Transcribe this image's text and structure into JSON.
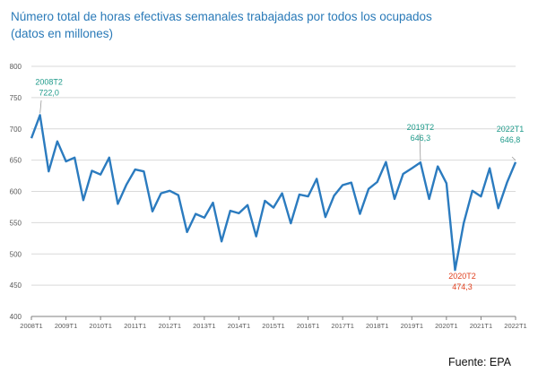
{
  "title_line1": "Número total de horas efectivas semanales trabajadas por todos los ocupados",
  "title_line2": "(datos en millones)",
  "source": "Fuente: EPA",
  "colors": {
    "line": "#2b7bbf",
    "title": "#2a7ab8",
    "annotation_high": "#1e9a8a",
    "annotation_low": "#e0401f",
    "grid": "#d9d9d9",
    "axis_text": "#595959"
  },
  "chart_data": {
    "type": "line",
    "title": "Número total de horas efectivas semanales trabajadas por todos los ocupados (datos en millones)",
    "grid": "horizontal",
    "ylim": [
      400,
      800
    ],
    "yticks": [
      400,
      450,
      500,
      550,
      600,
      650,
      700,
      750,
      800
    ],
    "xtick_labels": [
      "2008T1",
      "2009T1",
      "2010T1",
      "2011T1",
      "2012T1",
      "2013T1",
      "2014T1",
      "2015T1",
      "2016T1",
      "2017T1",
      "2018T1",
      "2019T1",
      "2020T1",
      "2021T1",
      "2022T1"
    ],
    "x": [
      "2008T1",
      "2008T2",
      "2008T3",
      "2008T4",
      "2009T1",
      "2009T2",
      "2009T3",
      "2009T4",
      "2010T1",
      "2010T2",
      "2010T3",
      "2010T4",
      "2011T1",
      "2011T2",
      "2011T3",
      "2011T4",
      "2012T1",
      "2012T2",
      "2012T3",
      "2012T4",
      "2013T1",
      "2013T2",
      "2013T3",
      "2013T4",
      "2014T1",
      "2014T2",
      "2014T3",
      "2014T4",
      "2015T1",
      "2015T2",
      "2015T3",
      "2015T4",
      "2016T1",
      "2016T2",
      "2016T3",
      "2016T4",
      "2017T1",
      "2017T2",
      "2017T3",
      "2017T4",
      "2018T1",
      "2018T2",
      "2018T3",
      "2018T4",
      "2019T1",
      "2019T2",
      "2019T3",
      "2019T4",
      "2020T1",
      "2020T2",
      "2020T3",
      "2020T4",
      "2021T1",
      "2021T2",
      "2021T3",
      "2021T4",
      "2022T1"
    ],
    "values": [
      685,
      722.0,
      632,
      680,
      648,
      654,
      586,
      633,
      627,
      654,
      580,
      611,
      635,
      632,
      568,
      597,
      601,
      594,
      535,
      564,
      558,
      582,
      520,
      569,
      565,
      578,
      528,
      585,
      574,
      597,
      549,
      595,
      592,
      620,
      559,
      593,
      610,
      614,
      564,
      604,
      615,
      647,
      588,
      628,
      637,
      646.3,
      588,
      640,
      613,
      474.3,
      549,
      601,
      592,
      637,
      573,
      614,
      646.8
    ],
    "annotations": [
      {
        "x": "2008T2",
        "label": "2008T2",
        "value": "722,0",
        "color": "high"
      },
      {
        "x": "2019T2",
        "label": "2019T2",
        "value": "646,3",
        "color": "high"
      },
      {
        "x": "2020T2",
        "label": "2020T2",
        "value": "474,3",
        "color": "low"
      },
      {
        "x": "2022T1",
        "label": "2022T1",
        "value": "646,8",
        "color": "high"
      }
    ]
  }
}
